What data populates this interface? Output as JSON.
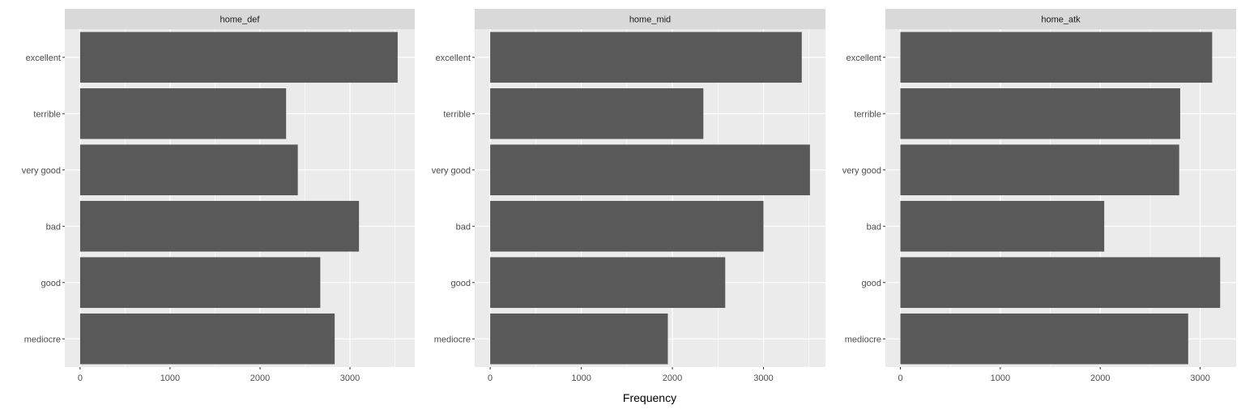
{
  "chart_data": {
    "type": "bar",
    "orientation": "horizontal",
    "xlabel": "Frequency",
    "ylabel": "",
    "categories": [
      "excellent",
      "terrible",
      "very good",
      "bad",
      "good",
      "mediocre"
    ],
    "x_ticks": [
      0,
      1000,
      2000,
      3000
    ],
    "grid": true,
    "legend": "none",
    "panels": [
      {
        "facet": "home_def",
        "xlim": [
          -170,
          3720
        ],
        "values": [
          3530,
          2290,
          2420,
          3100,
          2670,
          2830
        ]
      },
      {
        "facet": "home_mid",
        "xlim": [
          -170,
          3680
        ],
        "values": [
          3420,
          2340,
          3510,
          3000,
          2580,
          1950
        ]
      },
      {
        "facet": "home_atk",
        "xlim": [
          -150,
          3360
        ],
        "values": [
          3120,
          2800,
          2790,
          2040,
          3200,
          2880
        ]
      }
    ],
    "colors": {
      "bar": "#595959",
      "panel_background": "#ebebeb",
      "strip_background": "#d9d9d9",
      "grid": "#ffffff"
    }
  }
}
